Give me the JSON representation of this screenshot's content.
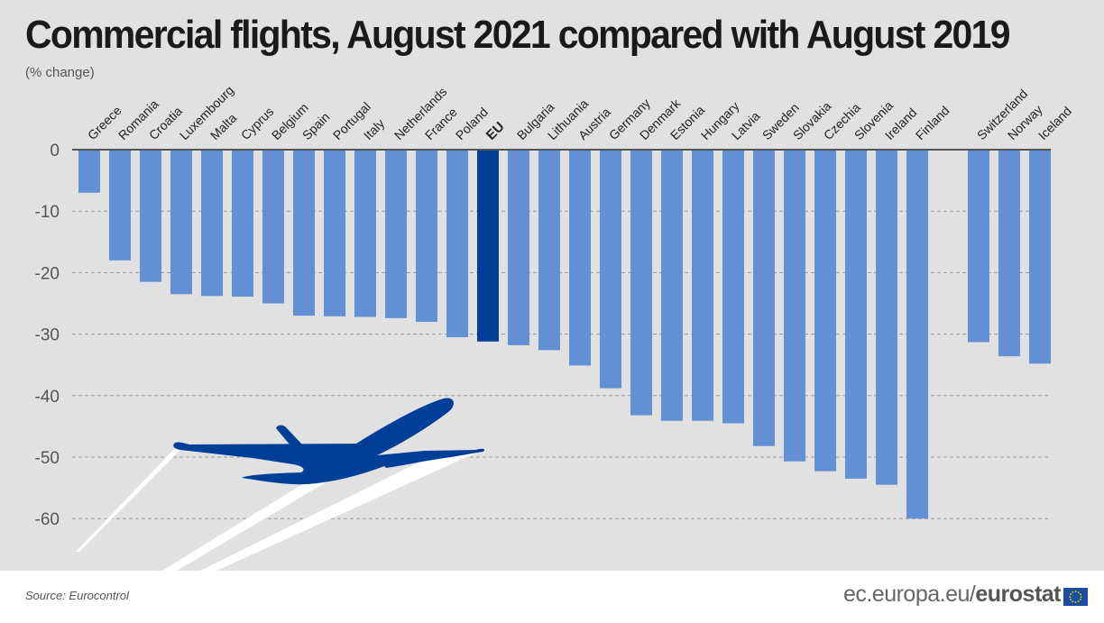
{
  "chart_data": {
    "type": "bar",
    "title": "Commercial flights, August 2021 compared with August 2019",
    "subtitle": "(% change)",
    "xlabel": "",
    "ylabel": "% change",
    "ylim": [
      -68,
      0
    ],
    "yticks": [
      0,
      -10,
      -20,
      -30,
      -40,
      -50,
      -60
    ],
    "grid": true,
    "highlight_category": "EU",
    "colors": {
      "bar": "#6390d4",
      "highlight": "#003f98",
      "axis": "#555555",
      "grid": "#9a9a9a"
    },
    "categories": [
      "Greece",
      "Romania",
      "Croatia",
      "Luxembourg",
      "Malta",
      "Cyprus",
      "Belgium",
      "Spain",
      "Portugal",
      "Italy",
      "Netherlands",
      "France",
      "Poland",
      "EU",
      "Bulgaria",
      "Lithuania",
      "Austria",
      "Germany",
      "Denmark",
      "Estonia",
      "Hungary",
      "Latvia",
      "Sweden",
      "Slovakia",
      "Czechia",
      "Slovenia",
      "Ireland",
      "Finland",
      "",
      "Switzerland",
      "Norway",
      "Iceland"
    ],
    "values": [
      -7.0,
      -18.0,
      -21.5,
      -23.5,
      -23.8,
      -23.9,
      -25.0,
      -27.0,
      -27.1,
      -27.2,
      -27.4,
      -28.0,
      -30.5,
      -31.2,
      -31.8,
      -32.6,
      -35.1,
      -38.8,
      -43.2,
      -44.1,
      -44.1,
      -44.5,
      -48.2,
      -50.7,
      -52.3,
      -53.5,
      -54.5,
      -60.0,
      null,
      -31.3,
      -33.6,
      -34.8
    ]
  },
  "footer": {
    "source": "Source: Eurocontrol",
    "site_prefix": "ec.europa.eu/",
    "site_brand": "eurostat"
  },
  "decoration": {
    "graphic": "airplane-icon",
    "graphic_color": "#003f98"
  }
}
